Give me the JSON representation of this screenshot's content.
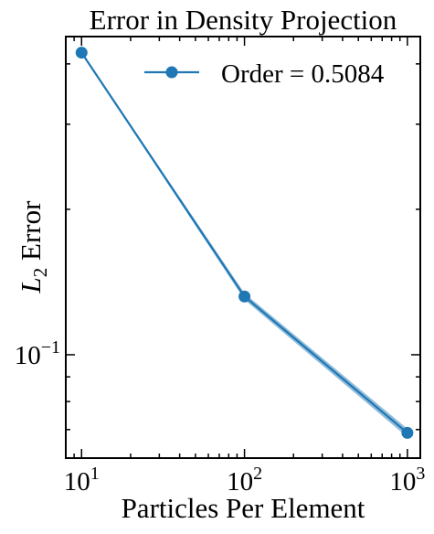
{
  "chart_data": {
    "type": "line",
    "title": "Error in Density Projection",
    "xlabel": "Particles Per Element",
    "ylabel": {
      "base": "L",
      "subscript": "2",
      "rest": " Error"
    },
    "xscale": "log",
    "yscale": "log",
    "xlim": [
      8,
      1200
    ],
    "ylim": [
      0.0611,
      0.4556
    ],
    "x_ticks": [
      {
        "value": 10,
        "base": "10",
        "exp": "1"
      },
      {
        "value": 100,
        "base": "10",
        "exp": "2"
      },
      {
        "value": 1000,
        "base": "10",
        "exp": "3"
      }
    ],
    "y_ticks": [
      {
        "value": 0.1,
        "base": "10",
        "exp": "−1"
      }
    ],
    "series": [
      {
        "name": "Order = 0.5084",
        "color": "#1f77b4",
        "marker": "circle",
        "x": [
          10,
          100,
          1000
        ],
        "y": [
          0.422,
          0.132,
          0.0689
        ],
        "band_lower": [
          0.42,
          0.13,
          0.0675
        ],
        "band_upper": [
          0.424,
          0.134,
          0.0703
        ]
      }
    ],
    "legend_position": "top-right",
    "grid": false
  }
}
